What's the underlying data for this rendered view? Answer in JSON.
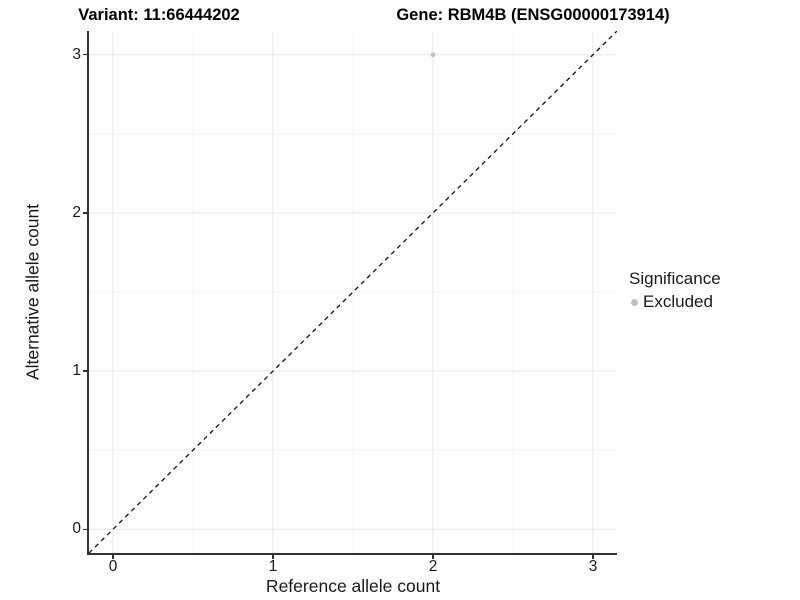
{
  "header": {
    "variant_title": "Variant: 11:66444202",
    "gene_title": "Gene: RBM4B (ENSG00000173914)"
  },
  "axes": {
    "x_label": "Reference allele count",
    "y_label": "Alternative allele count"
  },
  "legend": {
    "title": "Significance",
    "items": [
      {
        "label": "Excluded",
        "color": "#bebebe"
      }
    ]
  },
  "colors": {
    "point": "#bebebe",
    "major_grid": "#e7e7e7",
    "minor_grid": "#f3f3f3",
    "axis_line": "#333333",
    "reference_line": "#111111",
    "text": "#1a1a1a"
  },
  "chart_data": {
    "type": "scatter",
    "title": "Variant: 11:66444202 | Gene: RBM4B (ENSG00000173914)",
    "xlabel": "Reference allele count",
    "ylabel": "Alternative allele count",
    "xlim": [
      -0.15,
      3.15
    ],
    "ylim": [
      -0.15,
      3.15
    ],
    "x_ticks": [
      0,
      1,
      2,
      3
    ],
    "y_ticks": [
      0,
      1,
      2,
      3
    ],
    "x_minor_ticks": [
      0.5,
      1.5,
      2.5
    ],
    "y_minor_ticks": [
      0.5,
      1.5,
      2.5
    ],
    "grid": true,
    "legend_position": "right",
    "series": [
      {
        "name": "Excluded",
        "color": "#bebebe",
        "points": [
          {
            "x": 2,
            "y": 3
          }
        ]
      }
    ],
    "reference_line": {
      "type": "abline",
      "slope": 1,
      "intercept": 0,
      "style": "dashed",
      "color": "#111111"
    }
  }
}
